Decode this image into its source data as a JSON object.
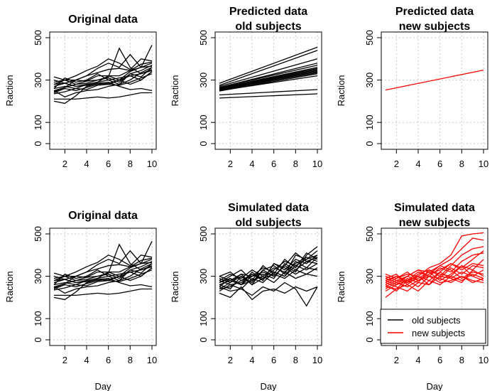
{
  "figure": {
    "xlabel": "Day",
    "ylabel": "Raction"
  },
  "legend": {
    "items": [
      {
        "label": "old subjects",
        "color": "#000000"
      },
      {
        "label": "new subjects",
        "color": "#ff0000"
      }
    ]
  },
  "chart_data": [
    {
      "type": "line",
      "title_lines": [
        "Original data"
      ],
      "color": "#000000",
      "xlabel": "",
      "ylabel": "Raction",
      "xlim": [
        1,
        10
      ],
      "ylim": [
        0,
        500
      ],
      "xticks": [
        2,
        4,
        6,
        8,
        10
      ],
      "yticks": [
        0,
        100,
        300,
        500
      ],
      "grid": true,
      "x": [
        1,
        2,
        3,
        4,
        5,
        6,
        7,
        8,
        9,
        10
      ],
      "series": [
        {
          "values": [
            315,
            300,
            280,
            295,
            300,
            310,
            290,
            330,
            315,
            360
          ]
        },
        {
          "values": [
            250,
            265,
            280,
            285,
            300,
            315,
            450,
            360,
            330,
            350
          ]
        },
        {
          "values": [
            235,
            245,
            260,
            280,
            290,
            320,
            320,
            345,
            360,
            465
          ]
        },
        {
          "values": [
            245,
            265,
            300,
            320,
            335,
            350,
            355,
            345,
            375,
            385
          ]
        },
        {
          "values": [
            200,
            190,
            225,
            270,
            285,
            280,
            300,
            280,
            300,
            340
          ]
        },
        {
          "values": [
            260,
            270,
            260,
            255,
            275,
            280,
            275,
            290,
            310,
            330
          ]
        },
        {
          "values": [
            260,
            310,
            290,
            300,
            330,
            300,
            280,
            330,
            345,
            370
          ]
        },
        {
          "values": [
            280,
            300,
            320,
            345,
            365,
            400,
            380,
            350,
            400,
            390
          ]
        },
        {
          "values": [
            290,
            300,
            300,
            320,
            355,
            380,
            360,
            420,
            360,
            380
          ]
        },
        {
          "values": [
            210,
            210,
            210,
            215,
            220,
            215,
            220,
            230,
            240,
            240
          ]
        },
        {
          "values": [
            300,
            285,
            270,
            275,
            285,
            290,
            270,
            255,
            260,
            250
          ]
        },
        {
          "values": [
            240,
            260,
            250,
            265,
            280,
            285,
            300,
            320,
            300,
            340
          ]
        },
        {
          "values": [
            250,
            220,
            240,
            250,
            255,
            270,
            280,
            300,
            335,
            360
          ]
        },
        {
          "values": [
            270,
            285,
            300,
            295,
            320,
            320,
            300,
            340,
            360,
            365
          ]
        },
        {
          "values": [
            280,
            285,
            270,
            280,
            290,
            300,
            310,
            320,
            330,
            345
          ]
        }
      ]
    },
    {
      "type": "line",
      "title_lines": [
        "Predicted data",
        "old subjects"
      ],
      "color": "#000000",
      "xlabel": "",
      "ylabel": "Raction",
      "xlim": [
        1,
        10
      ],
      "ylim": [
        0,
        500
      ],
      "xticks": [
        2,
        4,
        6,
        8,
        10
      ],
      "yticks": [
        0,
        100,
        300,
        500
      ],
      "grid": true,
      "x": [
        1,
        10
      ],
      "series": [
        {
          "values": [
            285,
            455
          ]
        },
        {
          "values": [
            275,
            440
          ]
        },
        {
          "values": [
            270,
            400
          ]
        },
        {
          "values": [
            265,
            380
          ]
        },
        {
          "values": [
            265,
            370
          ]
        },
        {
          "values": [
            262,
            360
          ]
        },
        {
          "values": [
            260,
            355
          ]
        },
        {
          "values": [
            258,
            350
          ]
        },
        {
          "values": [
            256,
            345
          ]
        },
        {
          "values": [
            255,
            340
          ]
        },
        {
          "values": [
            252,
            335
          ]
        },
        {
          "values": [
            248,
            330
          ]
        },
        {
          "values": [
            230,
            255
          ]
        },
        {
          "values": [
            215,
            235
          ]
        },
        {
          "values": [
            250,
            320
          ]
        }
      ]
    },
    {
      "type": "line",
      "title_lines": [
        "Predicted data",
        "new subjects"
      ],
      "color": "#ff0000",
      "xlabel": "",
      "ylabel": "Raction",
      "xlim": [
        1,
        10
      ],
      "ylim": [
        0,
        500
      ],
      "xticks": [
        2,
        4,
        6,
        8,
        10
      ],
      "yticks": [
        0,
        100,
        300,
        500
      ],
      "grid": true,
      "x": [
        1,
        10
      ],
      "series": [
        {
          "values": [
            253,
            347
          ]
        }
      ]
    },
    {
      "type": "line",
      "title_lines": [
        "Original data"
      ],
      "color": "#000000",
      "xlabel": "Day",
      "ylabel": "Raction",
      "xlim": [
        1,
        10
      ],
      "ylim": [
        0,
        500
      ],
      "xticks": [
        2,
        4,
        6,
        8,
        10
      ],
      "yticks": [
        0,
        100,
        300,
        500
      ],
      "grid": true,
      "x": [
        1,
        2,
        3,
        4,
        5,
        6,
        7,
        8,
        9,
        10
      ],
      "series": [
        {
          "values": [
            315,
            300,
            280,
            295,
            300,
            310,
            290,
            330,
            315,
            360
          ]
        },
        {
          "values": [
            250,
            265,
            280,
            285,
            300,
            315,
            450,
            360,
            330,
            350
          ]
        },
        {
          "values": [
            235,
            245,
            260,
            280,
            290,
            320,
            320,
            345,
            360,
            465
          ]
        },
        {
          "values": [
            245,
            265,
            300,
            320,
            335,
            350,
            355,
            345,
            375,
            385
          ]
        },
        {
          "values": [
            200,
            190,
            225,
            270,
            285,
            280,
            300,
            280,
            300,
            340
          ]
        },
        {
          "values": [
            260,
            270,
            260,
            255,
            275,
            280,
            275,
            290,
            310,
            330
          ]
        },
        {
          "values": [
            260,
            310,
            290,
            300,
            330,
            300,
            280,
            330,
            345,
            370
          ]
        },
        {
          "values": [
            280,
            300,
            320,
            345,
            365,
            400,
            380,
            350,
            400,
            390
          ]
        },
        {
          "values": [
            290,
            300,
            300,
            320,
            355,
            380,
            360,
            420,
            360,
            380
          ]
        },
        {
          "values": [
            210,
            210,
            210,
            215,
            220,
            215,
            220,
            230,
            240,
            240
          ]
        },
        {
          "values": [
            300,
            285,
            270,
            275,
            285,
            290,
            270,
            255,
            260,
            250
          ]
        },
        {
          "values": [
            240,
            260,
            250,
            265,
            280,
            285,
            300,
            320,
            300,
            340
          ]
        },
        {
          "values": [
            250,
            220,
            240,
            250,
            255,
            270,
            280,
            300,
            335,
            360
          ]
        },
        {
          "values": [
            270,
            285,
            300,
            295,
            320,
            320,
            300,
            340,
            360,
            365
          ]
        },
        {
          "values": [
            280,
            285,
            270,
            280,
            290,
            300,
            310,
            320,
            330,
            345
          ]
        }
      ]
    },
    {
      "type": "line",
      "title_lines": [
        "Simulated data",
        "old subjects"
      ],
      "color": "#000000",
      "xlabel": "Day",
      "ylabel": "Raction",
      "xlim": [
        1,
        10
      ],
      "ylim": [
        0,
        500
      ],
      "xticks": [
        2,
        4,
        6,
        8,
        10
      ],
      "yticks": [
        0,
        100,
        300,
        500
      ],
      "grid": true,
      "x": [
        1,
        2,
        3,
        4,
        5,
        6,
        7,
        8,
        9,
        10
      ],
      "series": [
        {
          "values": [
            290,
            270,
            310,
            260,
            330,
            300,
            350,
            320,
            400,
            440
          ]
        },
        {
          "values": [
            250,
            290,
            260,
            320,
            280,
            360,
            330,
            380,
            360,
            400
          ]
        },
        {
          "values": [
            270,
            300,
            330,
            280,
            350,
            310,
            380,
            340,
            410,
            380
          ]
        },
        {
          "values": [
            230,
            260,
            240,
            290,
            270,
            320,
            300,
            370,
            340,
            390
          ]
        },
        {
          "values": [
            300,
            280,
            260,
            300,
            310,
            290,
            360,
            330,
            370,
            360
          ]
        },
        {
          "values": [
            260,
            240,
            300,
            270,
            330,
            350,
            310,
            400,
            380,
            420
          ]
        },
        {
          "values": [
            280,
            310,
            290,
            330,
            300,
            340,
            320,
            360,
            390,
            370
          ]
        },
        {
          "values": [
            240,
            270,
            300,
            260,
            290,
            310,
            290,
            330,
            310,
            340
          ]
        },
        {
          "values": [
            220,
            200,
            250,
            190,
            230,
            240,
            220,
            250,
            230,
            250
          ]
        },
        {
          "values": [
            250,
            230,
            240,
            210,
            250,
            230,
            270,
            240,
            160,
            250
          ]
        },
        {
          "values": [
            300,
            320,
            280,
            310,
            290,
            330,
            370,
            350,
            330,
            360
          ]
        },
        {
          "values": [
            260,
            280,
            310,
            300,
            340,
            320,
            300,
            350,
            380,
            400
          ]
        },
        {
          "values": [
            280,
            260,
            270,
            310,
            280,
            360,
            340,
            310,
            340,
            330
          ]
        },
        {
          "values": [
            240,
            250,
            280,
            300,
            320,
            300,
            350,
            410,
            370,
            390
          ]
        },
        {
          "values": [
            270,
            290,
            260,
            280,
            300,
            270,
            320,
            290,
            310,
            300
          ]
        }
      ]
    },
    {
      "type": "line",
      "title_lines": [
        "Simulated data",
        "new subjects"
      ],
      "color": "#ff0000",
      "xlabel": "Day",
      "ylabel": "Raction",
      "xlim": [
        1,
        10
      ],
      "ylim": [
        0,
        500
      ],
      "xticks": [
        2,
        4,
        6,
        8,
        10
      ],
      "yticks": [
        0,
        100,
        300,
        500
      ],
      "grid": true,
      "legend": "bottom-right",
      "x": [
        1,
        2,
        3,
        4,
        5,
        6,
        7,
        8,
        9,
        10
      ],
      "series": [
        {
          "values": [
            260,
            290,
            310,
            300,
            340,
            360,
            400,
            490,
            500,
            505
          ]
        },
        {
          "values": [
            280,
            260,
            300,
            330,
            320,
            350,
            380,
            430,
            480,
            470
          ]
        },
        {
          "values": [
            300,
            280,
            270,
            310,
            330,
            300,
            350,
            400,
            430,
            440
          ]
        },
        {
          "values": [
            240,
            270,
            300,
            280,
            310,
            330,
            360,
            340,
            380,
            420
          ]
        },
        {
          "values": [
            270,
            300,
            280,
            320,
            300,
            340,
            320,
            370,
            400,
            410
          ]
        },
        {
          "values": [
            250,
            240,
            290,
            270,
            330,
            310,
            300,
            350,
            330,
            380
          ]
        },
        {
          "values": [
            290,
            310,
            260,
            300,
            280,
            320,
            360,
            330,
            360,
            350
          ]
        },
        {
          "values": [
            230,
            260,
            280,
            250,
            300,
            290,
            340,
            310,
            350,
            340
          ]
        },
        {
          "values": [
            310,
            290,
            320,
            280,
            310,
            350,
            330,
            290,
            320,
            310
          ]
        },
        {
          "values": [
            270,
            250,
            230,
            270,
            260,
            300,
            290,
            320,
            300,
            330
          ]
        },
        {
          "values": [
            200,
            240,
            260,
            230,
            280,
            260,
            300,
            280,
            310,
            290
          ]
        },
        {
          "values": [
            250,
            280,
            300,
            330,
            300,
            290,
            270,
            300,
            280,
            270
          ]
        },
        {
          "values": [
            280,
            300,
            270,
            290,
            320,
            280,
            310,
            350,
            300,
            280
          ]
        },
        {
          "values": [
            260,
            230,
            280,
            300,
            260,
            320,
            290,
            270,
            330,
            300
          ]
        },
        {
          "values": [
            290,
            270,
            250,
            280,
            300,
            270,
            280,
            300,
            270,
            290
          ]
        }
      ]
    }
  ]
}
